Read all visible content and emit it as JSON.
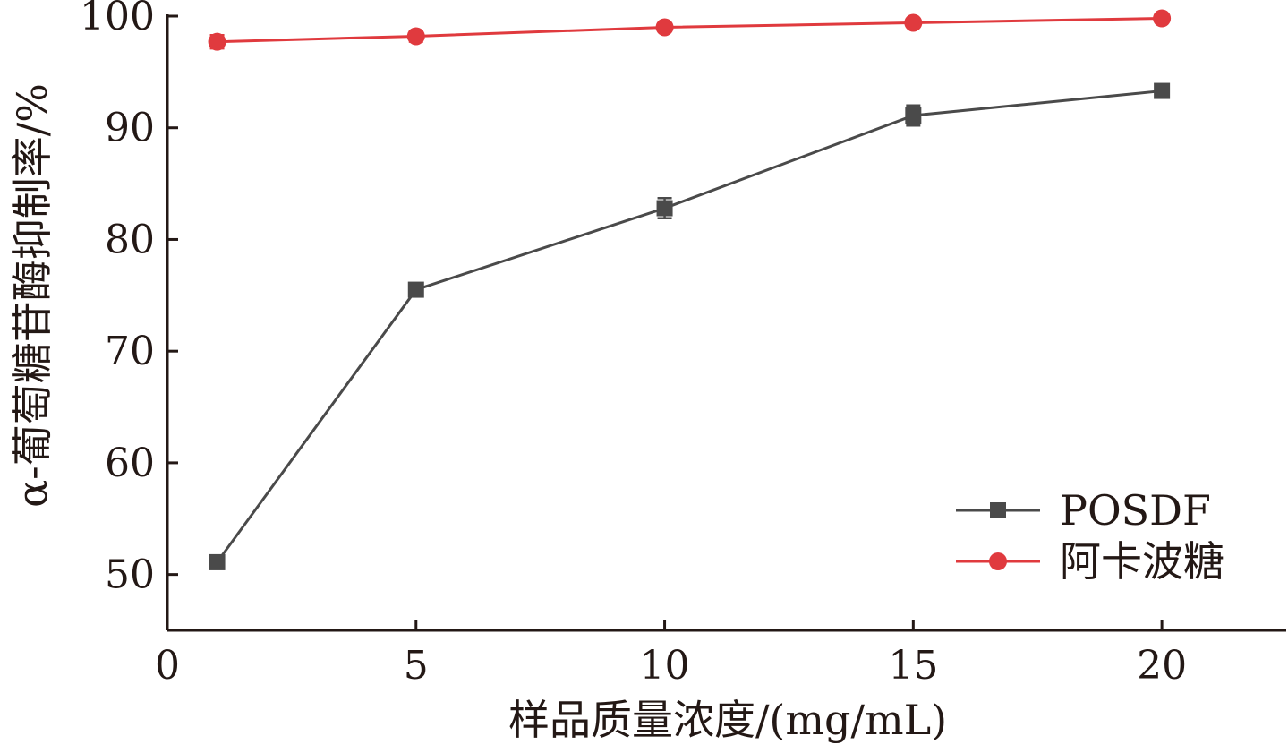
{
  "chart_data": {
    "type": "line",
    "xlabel": "样品质量浓度/(mg/mL)",
    "ylabel": "α-葡萄糖苷酶抑制率/%",
    "xlim": [
      0,
      22.5
    ],
    "ylim": [
      45,
      100
    ],
    "xticks": [
      0,
      5,
      10,
      15,
      20
    ],
    "yticks": [
      50,
      60,
      70,
      80,
      90,
      100
    ],
    "grid": false,
    "legend_position": "bottom-right",
    "series": [
      {
        "name": "POSDF",
        "color": "#4a4a4a",
        "marker": "square",
        "x": [
          1,
          5,
          10,
          15,
          20
        ],
        "y": [
          51.1,
          75.5,
          82.8,
          91.1,
          93.3
        ],
        "error": [
          0.3,
          0.5,
          0.9,
          0.9,
          0.4
        ]
      },
      {
        "name": "阿卡波糖",
        "color": "#e03a3e",
        "marker": "circle",
        "x": [
          1,
          5,
          10,
          15,
          20
        ],
        "y": [
          97.7,
          98.2,
          99.0,
          99.4,
          99.8
        ],
        "error": [
          0.6,
          0.5,
          0.3,
          0.2,
          0.2
        ]
      }
    ]
  }
}
